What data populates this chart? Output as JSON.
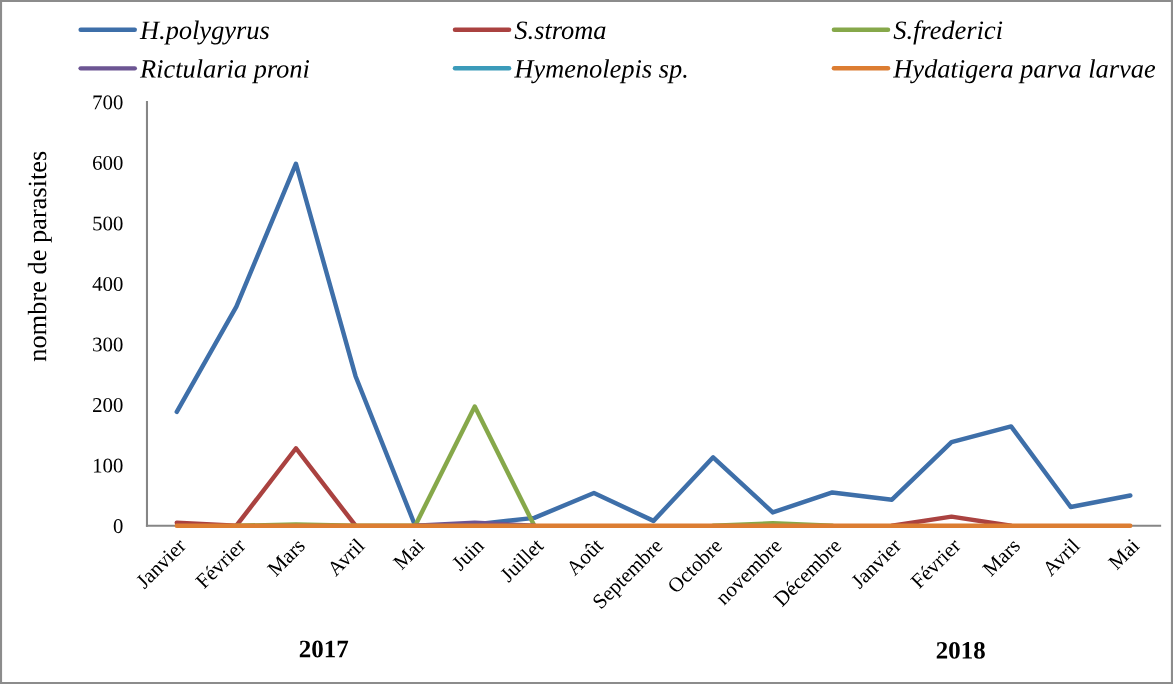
{
  "chart_data": {
    "type": "line",
    "ylabel": "nombre de parasites",
    "categories": [
      "Janvier",
      "Février",
      "Mars",
      "Avril",
      "Mai",
      "Juin",
      "Juillet",
      "Août",
      "Septembre",
      "Octobre",
      "novembre",
      "Décembre",
      "Janvier",
      "Février",
      "Mars",
      "Avril",
      "Mai"
    ],
    "series": [
      {
        "name": "H.polygyrus",
        "color": "#3e6fa9",
        "values": [
          188,
          362,
          598,
          247,
          0,
          2,
          13,
          54,
          8,
          113,
          22,
          55,
          43,
          138,
          164,
          31,
          50
        ]
      },
      {
        "name": "S.stroma",
        "color": "#aa4240",
        "values": [
          5,
          0,
          128,
          0,
          null,
          null,
          null,
          null,
          null,
          null,
          null,
          null,
          0,
          15,
          0,
          null,
          null
        ]
      },
      {
        "name": "S.frederici",
        "color": "#86a84a",
        "values": [
          null,
          0,
          2,
          0,
          0,
          197,
          0,
          null,
          null,
          0,
          4,
          0,
          null,
          null,
          null,
          null,
          null
        ]
      },
      {
        "name": "Rictularia proni",
        "color": "#6c5593",
        "values": [
          null,
          null,
          null,
          null,
          0,
          5,
          0,
          null,
          null,
          null,
          null,
          null,
          null,
          null,
          null,
          null,
          null
        ]
      },
      {
        "name": "Hymenolepis sp.",
        "color": "#3b9bba",
        "values": [
          null,
          null,
          null,
          null,
          null,
          null,
          null,
          null,
          null,
          null,
          null,
          null,
          null,
          null,
          null,
          null,
          null
        ]
      },
      {
        "name": "Hydatigera parva larvae",
        "color": "#dc7d32",
        "values": [
          0,
          0,
          0,
          0,
          0,
          0,
          0,
          0,
          0,
          0,
          0,
          0,
          0,
          0,
          0,
          0,
          0
        ]
      }
    ],
    "ylim": [
      0,
      700
    ],
    "yticks": [
      0,
      100,
      200,
      300,
      400,
      500,
      600,
      700
    ],
    "legend": "top",
    "annotations": [
      "2017",
      "2018"
    ]
  }
}
